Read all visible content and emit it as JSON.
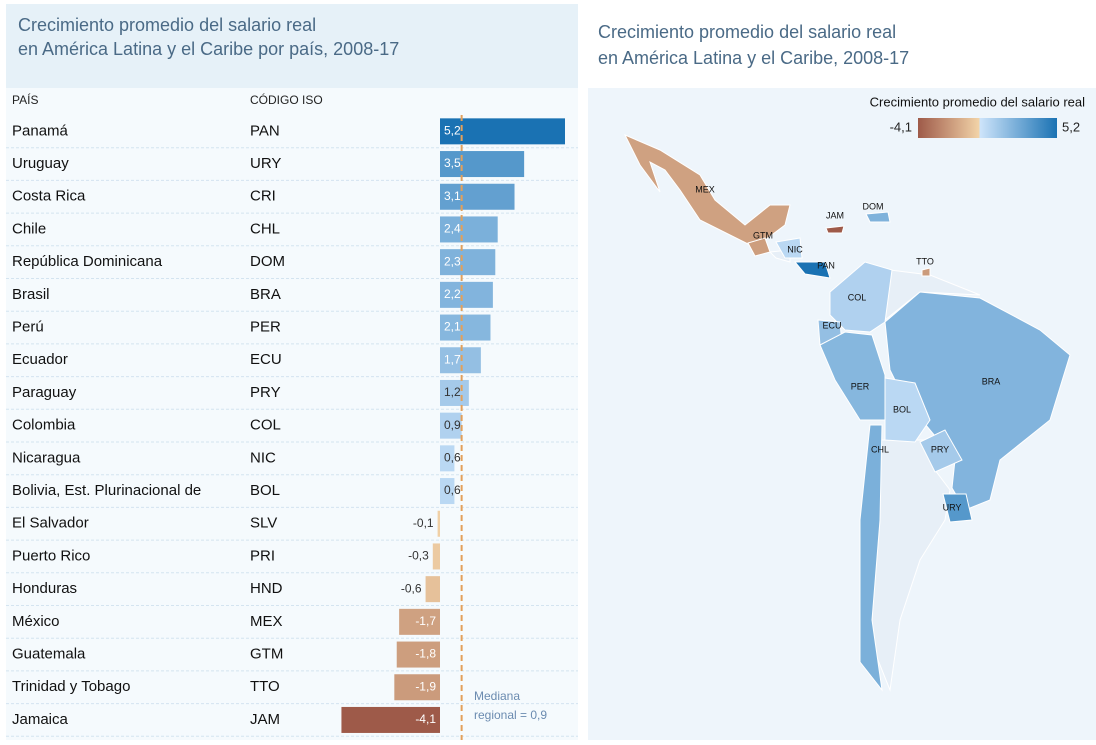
{
  "chart_data": [
    {
      "type": "bar",
      "title": "Crecimiento promedio del salario real\nen América Latina y el Caribe por país, 2008-17",
      "column_headers": [
        "PAÍS",
        "CÓDIGO ISO"
      ],
      "categories": [
        "Panamá",
        "Uruguay",
        "Costa Rica",
        "Chile",
        "República Dominicana",
        "Brasil",
        "Perú",
        "Ecuador",
        "Paraguay",
        "Colombia",
        "Nicaragua",
        "Bolivia, Est. Plurinacional de",
        "El Salvador",
        "Puerto Rico",
        "Honduras",
        "México",
        "Guatemala",
        "Trinidad y Tobago",
        "Jamaica"
      ],
      "iso": [
        "PAN",
        "URY",
        "CRI",
        "CHL",
        "DOM",
        "BRA",
        "PER",
        "ECU",
        "PRY",
        "COL",
        "NIC",
        "BOL",
        "SLV",
        "PRI",
        "HND",
        "MEX",
        "GTM",
        "TTO",
        "JAM"
      ],
      "values": [
        5.2,
        3.5,
        3.1,
        2.4,
        2.3,
        2.2,
        2.1,
        1.7,
        1.2,
        0.9,
        0.6,
        0.6,
        -0.1,
        -0.3,
        -0.6,
        -1.7,
        -1.8,
        -1.9,
        -4.1
      ],
      "value_labels": [
        "5,2",
        "3,5",
        "3,1",
        "2,4",
        "2,3",
        "2,2",
        "2,1",
        "1,7",
        "1,2",
        "0,9",
        "0,6",
        "0,6",
        "-0,1",
        "-0,3",
        "-0,6",
        "-1,7",
        "-1,8",
        "-1,9",
        "-4,1"
      ],
      "median": 0.9,
      "median_color": "#e3a05a",
      "annotation": "Mediana\nregional = 0,9"
    },
    {
      "type": "map",
      "title": "Crecimiento promedio del salario real\nen América Latina y el Caribe, 2008-17",
      "legend_title": "Crecimiento promedio del salario real",
      "colorticks": [
        {
          "value": -4.1,
          "label": "-4,1"
        },
        {
          "value": 5.2,
          "label": "5,2"
        }
      ],
      "colors": [
        "#9e5a49",
        "#f2d3a8",
        "#cfe5fb",
        "#1a72b3"
      ],
      "labels": [
        "MEX",
        "GTM",
        "NIC",
        "PAN",
        "JAM",
        "DOM",
        "TTO",
        "COL",
        "ECU",
        "PER",
        "BRA",
        "BOL",
        "PRY",
        "CHL",
        "URY"
      ]
    }
  ]
}
